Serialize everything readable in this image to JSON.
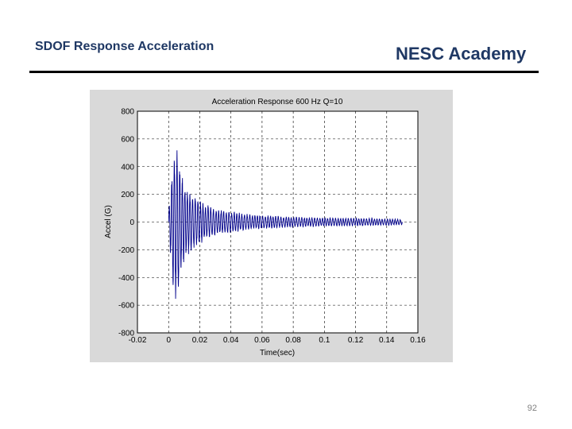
{
  "header": {
    "left_title": "SDOF Response Acceleration",
    "right_title": "NESC Academy"
  },
  "footer": {
    "page_number": "92"
  },
  "colors": {
    "series": "#00008b",
    "plot_bg": "#ffffff",
    "frame_bg": "#d9d9d9",
    "grid": "#000000"
  },
  "chart_data": {
    "type": "line",
    "title": "Acceleration Response 600 Hz  Q=10",
    "xlabel": "Time(sec)",
    "ylabel": "Accel (G)",
    "xlim": [
      -0.02,
      0.16
    ],
    "ylim": [
      -800,
      800
    ],
    "xticks": [
      -0.02,
      0,
      0.02,
      0.04,
      0.06,
      0.08,
      0.1,
      0.12,
      0.14,
      0.16
    ],
    "xtick_labels": [
      "-0.02",
      "0",
      "0.02",
      "0.04",
      "0.06",
      "0.08",
      "0.1",
      "0.12",
      "0.14",
      "0.16"
    ],
    "yticks": [
      -800,
      -600,
      -400,
      -200,
      0,
      200,
      400,
      600,
      800
    ],
    "ytick_labels": [
      "-800",
      "-600",
      "-400",
      "-200",
      "0",
      "200",
      "400",
      "600",
      "800"
    ],
    "grid": true,
    "grid_style": "dashed",
    "series": [
      {
        "frequency_hz": 600,
        "x": [
          0,
          0.002,
          0.003,
          0.004,
          0.005,
          0.006,
          0.007,
          0.008,
          0.009,
          0.01,
          0.011,
          0.012,
          0.013,
          0.014,
          0.015,
          0.016,
          0.018,
          0.02,
          0.022,
          0.024,
          0.026,
          0.028,
          0.03,
          0.032,
          0.035,
          0.038,
          0.04,
          0.043,
          0.046,
          0.05,
          0.055,
          0.06,
          0.065,
          0.07,
          0.075,
          0.08,
          0.09,
          0.1,
          0.11,
          0.12,
          0.13,
          0.14,
          0.15
        ],
        "envelope": [
          80,
          360,
          560,
          520,
          640,
          590,
          460,
          380,
          330,
          300,
          280,
          260,
          250,
          240,
          220,
          200,
          180,
          160,
          150,
          130,
          120,
          110,
          100,
          95,
          90,
          85,
          80,
          75,
          70,
          60,
          55,
          50,
          50,
          45,
          40,
          38,
          35,
          32,
          30,
          30,
          28,
          25,
          20
        ]
      }
    ]
  }
}
